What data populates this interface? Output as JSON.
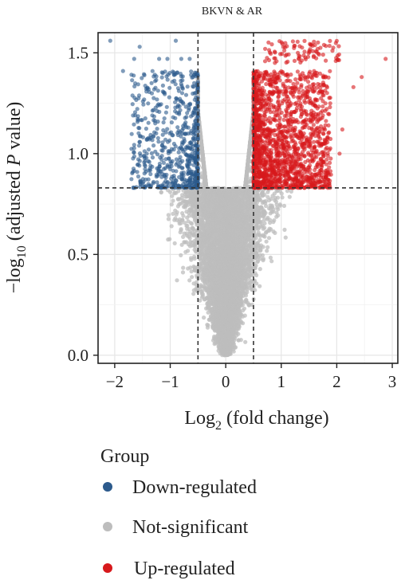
{
  "chart_data": {
    "type": "scatter",
    "title": "BKVN & AR",
    "xlabel_main": "Log",
    "xlabel_sub": "2",
    "xlabel_rest": " (fold change)",
    "ylabel_pre": "−log",
    "ylabel_sub": "10",
    "ylabel_mid": " (adjusted ",
    "ylabel_italic": "P",
    "ylabel_post": " value)",
    "xlim": [
      -2.3,
      3.1
    ],
    "ylim": [
      -0.04,
      1.6
    ],
    "x_ticks": [
      -2,
      -1,
      0,
      1,
      2,
      3
    ],
    "x_tick_labels": [
      "−2",
      "−1",
      "0",
      "1",
      "2",
      "3"
    ],
    "y_ticks": [
      0.0,
      0.5,
      1.0,
      1.5
    ],
    "y_tick_labels": [
      "0.0",
      "0.5",
      "1.0",
      "1.5"
    ],
    "grid": true,
    "thresholds": {
      "fold_change": [
        -0.5,
        0.5
      ],
      "adjusted_p": 0.83
    },
    "legend_title": "Group",
    "legend_position": "bottom",
    "groups": [
      {
        "name": "Down-regulated",
        "color": "#2c5a8c",
        "x_range": [
          -2.15,
          -0.5
        ],
        "y_range": [
          0.83,
          1.56
        ],
        "approx_points": 650
      },
      {
        "name": "Not-significant",
        "color": "#bdbdbd",
        "x_range": [
          -1.5,
          1.9
        ],
        "y_range": [
          0.0,
          0.83
        ],
        "approx_points": 6500
      },
      {
        "name": "Up-regulated",
        "color": "#d7191c",
        "x_range": [
          0.5,
          2.9
        ],
        "y_range": [
          0.83,
          1.56
        ],
        "approx_points": 1600
      }
    ]
  }
}
